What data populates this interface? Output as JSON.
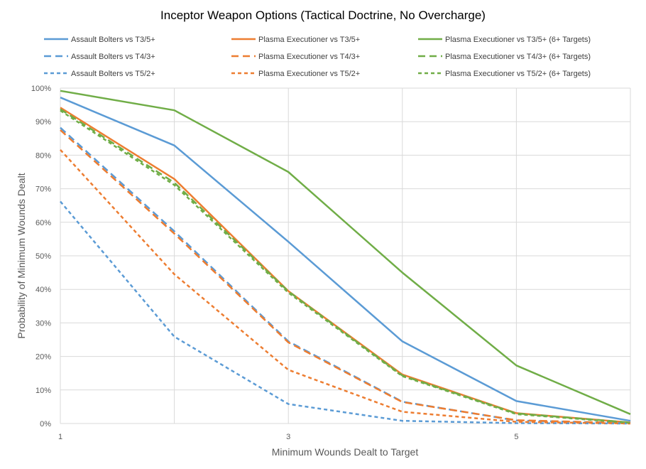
{
  "chart_data": {
    "type": "line",
    "title": "Inceptor Weapon Options (Tactical Doctrine, No Overcharge)",
    "xlabel": "Minimum Wounds Dealt  to Target",
    "ylabel": "Probability of Minimum Wounds Dealt",
    "x": [
      1,
      2,
      3,
      4,
      5,
      6
    ],
    "x_tick_labels": [
      "1",
      "3",
      "5"
    ],
    "x_tick_values": [
      1,
      3,
      5
    ],
    "xlim": [
      1,
      6
    ],
    "ylim": [
      0,
      1
    ],
    "y_tick_values": [
      0,
      0.1,
      0.2,
      0.3,
      0.4,
      0.5,
      0.6,
      0.7,
      0.8,
      0.9,
      1.0
    ],
    "y_tick_labels": [
      "0%",
      "10%",
      "20%",
      "30%",
      "40%",
      "50%",
      "60%",
      "70%",
      "80%",
      "90%",
      "100%"
    ],
    "grid": "vertical-and-horizontal",
    "legend_position": "top",
    "series": [
      {
        "name": "Assault Bolters vs T3/5+",
        "color": "#5B9BD5",
        "dash": "solid",
        "values": [
          0.972,
          0.829,
          0.542,
          0.245,
          0.067,
          0.008
        ]
      },
      {
        "name": "Plasma Executioner vs T3/5+",
        "color": "#ED7D31",
        "dash": "solid",
        "values": [
          0.942,
          0.729,
          0.395,
          0.146,
          0.031,
          0.003
        ]
      },
      {
        "name": "Plasma Executioner vs T3/5+ (6+ Targets)",
        "color": "#70AD47",
        "dash": "solid",
        "values": [
          0.992,
          0.934,
          0.75,
          0.45,
          0.173,
          0.028
        ]
      },
      {
        "name": "Assault Bolters vs T4/3+",
        "color": "#5B9BD5",
        "dash": "dashed",
        "values": [
          0.882,
          0.573,
          0.245,
          0.065,
          0.009,
          0.001
        ]
      },
      {
        "name": "Plasma Executioner vs T4/3+",
        "color": "#ED7D31",
        "dash": "dashed",
        "values": [
          0.875,
          0.566,
          0.242,
          0.064,
          0.01,
          0.001
        ]
      },
      {
        "name": "Plasma Executioner vs T4/3+ (6+ Targets)",
        "color": "#70AD47",
        "dash": "dashed",
        "values": [
          0.937,
          0.718,
          0.394,
          0.143,
          0.03,
          0.003
        ]
      },
      {
        "name": "Assault Bolters vs T5/2+",
        "color": "#5B9BD5",
        "dash": "dotted",
        "values": [
          0.662,
          0.259,
          0.058,
          0.008,
          0.001,
          0.0
        ]
      },
      {
        "name": "Plasma Executioner vs T5/2+",
        "color": "#ED7D31",
        "dash": "dotted",
        "values": [
          0.816,
          0.445,
          0.16,
          0.035,
          0.005,
          0.0
        ]
      },
      {
        "name": "Plasma Executioner vs T5/2+ (6+ Targets)",
        "color": "#70AD47",
        "dash": "dotted",
        "values": [
          0.933,
          0.711,
          0.39,
          0.141,
          0.028,
          0.002
        ]
      }
    ]
  }
}
